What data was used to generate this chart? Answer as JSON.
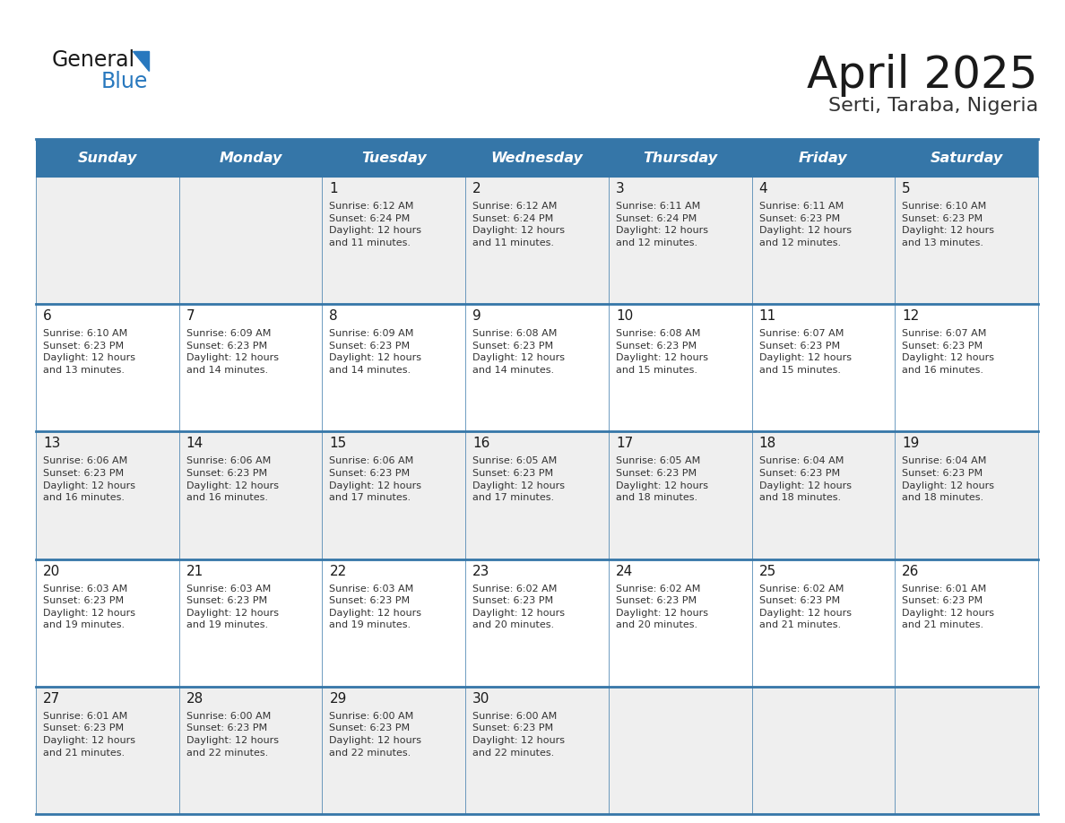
{
  "title": "April 2025",
  "subtitle": "Serti, Taraba, Nigeria",
  "header_bg": "#3576a8",
  "header_text_color": "#ffffff",
  "border_color": "#3576a8",
  "text_color": "#333333",
  "days_of_week": [
    "Sunday",
    "Monday",
    "Tuesday",
    "Wednesday",
    "Thursday",
    "Friday",
    "Saturday"
  ],
  "weeks": [
    [
      {
        "day": "",
        "info": ""
      },
      {
        "day": "",
        "info": ""
      },
      {
        "day": "1",
        "info": "Sunrise: 6:12 AM\nSunset: 6:24 PM\nDaylight: 12 hours\nand 11 minutes."
      },
      {
        "day": "2",
        "info": "Sunrise: 6:12 AM\nSunset: 6:24 PM\nDaylight: 12 hours\nand 11 minutes."
      },
      {
        "day": "3",
        "info": "Sunrise: 6:11 AM\nSunset: 6:24 PM\nDaylight: 12 hours\nand 12 minutes."
      },
      {
        "day": "4",
        "info": "Sunrise: 6:11 AM\nSunset: 6:23 PM\nDaylight: 12 hours\nand 12 minutes."
      },
      {
        "day": "5",
        "info": "Sunrise: 6:10 AM\nSunset: 6:23 PM\nDaylight: 12 hours\nand 13 minutes."
      }
    ],
    [
      {
        "day": "6",
        "info": "Sunrise: 6:10 AM\nSunset: 6:23 PM\nDaylight: 12 hours\nand 13 minutes."
      },
      {
        "day": "7",
        "info": "Sunrise: 6:09 AM\nSunset: 6:23 PM\nDaylight: 12 hours\nand 14 minutes."
      },
      {
        "day": "8",
        "info": "Sunrise: 6:09 AM\nSunset: 6:23 PM\nDaylight: 12 hours\nand 14 minutes."
      },
      {
        "day": "9",
        "info": "Sunrise: 6:08 AM\nSunset: 6:23 PM\nDaylight: 12 hours\nand 14 minutes."
      },
      {
        "day": "10",
        "info": "Sunrise: 6:08 AM\nSunset: 6:23 PM\nDaylight: 12 hours\nand 15 minutes."
      },
      {
        "day": "11",
        "info": "Sunrise: 6:07 AM\nSunset: 6:23 PM\nDaylight: 12 hours\nand 15 minutes."
      },
      {
        "day": "12",
        "info": "Sunrise: 6:07 AM\nSunset: 6:23 PM\nDaylight: 12 hours\nand 16 minutes."
      }
    ],
    [
      {
        "day": "13",
        "info": "Sunrise: 6:06 AM\nSunset: 6:23 PM\nDaylight: 12 hours\nand 16 minutes."
      },
      {
        "day": "14",
        "info": "Sunrise: 6:06 AM\nSunset: 6:23 PM\nDaylight: 12 hours\nand 16 minutes."
      },
      {
        "day": "15",
        "info": "Sunrise: 6:06 AM\nSunset: 6:23 PM\nDaylight: 12 hours\nand 17 minutes."
      },
      {
        "day": "16",
        "info": "Sunrise: 6:05 AM\nSunset: 6:23 PM\nDaylight: 12 hours\nand 17 minutes."
      },
      {
        "day": "17",
        "info": "Sunrise: 6:05 AM\nSunset: 6:23 PM\nDaylight: 12 hours\nand 18 minutes."
      },
      {
        "day": "18",
        "info": "Sunrise: 6:04 AM\nSunset: 6:23 PM\nDaylight: 12 hours\nand 18 minutes."
      },
      {
        "day": "19",
        "info": "Sunrise: 6:04 AM\nSunset: 6:23 PM\nDaylight: 12 hours\nand 18 minutes."
      }
    ],
    [
      {
        "day": "20",
        "info": "Sunrise: 6:03 AM\nSunset: 6:23 PM\nDaylight: 12 hours\nand 19 minutes."
      },
      {
        "day": "21",
        "info": "Sunrise: 6:03 AM\nSunset: 6:23 PM\nDaylight: 12 hours\nand 19 minutes."
      },
      {
        "day": "22",
        "info": "Sunrise: 6:03 AM\nSunset: 6:23 PM\nDaylight: 12 hours\nand 19 minutes."
      },
      {
        "day": "23",
        "info": "Sunrise: 6:02 AM\nSunset: 6:23 PM\nDaylight: 12 hours\nand 20 minutes."
      },
      {
        "day": "24",
        "info": "Sunrise: 6:02 AM\nSunset: 6:23 PM\nDaylight: 12 hours\nand 20 minutes."
      },
      {
        "day": "25",
        "info": "Sunrise: 6:02 AM\nSunset: 6:23 PM\nDaylight: 12 hours\nand 21 minutes."
      },
      {
        "day": "26",
        "info": "Sunrise: 6:01 AM\nSunset: 6:23 PM\nDaylight: 12 hours\nand 21 minutes."
      }
    ],
    [
      {
        "day": "27",
        "info": "Sunrise: 6:01 AM\nSunset: 6:23 PM\nDaylight: 12 hours\nand 21 minutes."
      },
      {
        "day": "28",
        "info": "Sunrise: 6:00 AM\nSunset: 6:23 PM\nDaylight: 12 hours\nand 22 minutes."
      },
      {
        "day": "29",
        "info": "Sunrise: 6:00 AM\nSunset: 6:23 PM\nDaylight: 12 hours\nand 22 minutes."
      },
      {
        "day": "30",
        "info": "Sunrise: 6:00 AM\nSunset: 6:23 PM\nDaylight: 12 hours\nand 22 minutes."
      },
      {
        "day": "",
        "info": ""
      },
      {
        "day": "",
        "info": ""
      },
      {
        "day": "",
        "info": ""
      }
    ]
  ],
  "logo_text1": "General",
  "logo_text2": "Blue",
  "logo_color1": "#1a1a1a",
  "logo_color2": "#2878be",
  "logo_tri_color": "#2878be"
}
